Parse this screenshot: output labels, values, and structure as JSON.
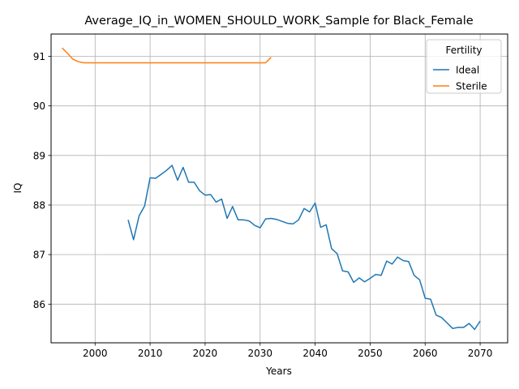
{
  "chart_data": {
    "type": "line",
    "title": "Average_IQ_in_WOMEN_SHOULD_WORK_Sample for Black_Female",
    "xlabel": "Years",
    "ylabel": "IQ",
    "xlim": [
      1992,
      2075
    ],
    "ylim": [
      85.22,
      91.45
    ],
    "xticks": [
      2000,
      2010,
      2020,
      2030,
      2040,
      2050,
      2060,
      2070
    ],
    "yticks": [
      86,
      87,
      88,
      89,
      90,
      91
    ],
    "grid": true,
    "legend": {
      "title": "Fertility",
      "position": "top-right"
    },
    "series": [
      {
        "name": "Ideal",
        "color": "#1f77b4",
        "x": [
          2006,
          2007,
          2008,
          2009,
          2010,
          2011,
          2012,
          2013,
          2014,
          2015,
          2016,
          2017,
          2018,
          2019,
          2020,
          2021,
          2022,
          2023,
          2024,
          2025,
          2026,
          2027,
          2028,
          2029,
          2030,
          2031,
          2032,
          2033,
          2034,
          2035,
          2036,
          2037,
          2038,
          2039,
          2040,
          2041,
          2042,
          2043,
          2044,
          2045,
          2046,
          2047,
          2048,
          2049,
          2050,
          2051,
          2052,
          2053,
          2054,
          2055,
          2056,
          2057,
          2058,
          2059,
          2060,
          2061,
          2062,
          2063,
          2064,
          2065,
          2066,
          2067,
          2068,
          2069,
          2070
        ],
        "values": [
          87.7,
          87.3,
          87.78,
          87.98,
          88.55,
          88.54,
          88.62,
          88.7,
          88.8,
          88.5,
          88.76,
          88.46,
          88.46,
          88.29,
          88.2,
          88.21,
          88.06,
          88.12,
          87.73,
          87.97,
          87.7,
          87.7,
          87.68,
          87.59,
          87.54,
          87.72,
          87.73,
          87.71,
          87.67,
          87.63,
          87.62,
          87.7,
          87.93,
          87.86,
          88.04,
          87.55,
          87.6,
          87.12,
          87.02,
          86.67,
          86.65,
          86.44,
          86.53,
          86.45,
          86.52,
          86.6,
          86.58,
          86.87,
          86.81,
          86.95,
          86.88,
          86.86,
          86.58,
          86.49,
          86.12,
          86.1,
          85.78,
          85.73,
          85.62,
          85.51,
          85.53,
          85.53,
          85.61,
          85.49,
          85.66
        ]
      },
      {
        "name": "Sterile",
        "color": "#ff7f0e",
        "x": [
          1994,
          1995,
          1996,
          1997,
          1998,
          2000,
          2005,
          2010,
          2015,
          2020,
          2025,
          2030,
          2031,
          2032
        ],
        "values": [
          91.17,
          91.06,
          90.94,
          90.89,
          90.87,
          90.87,
          90.87,
          90.87,
          90.87,
          90.87,
          90.87,
          90.87,
          90.87,
          90.98
        ]
      }
    ]
  }
}
